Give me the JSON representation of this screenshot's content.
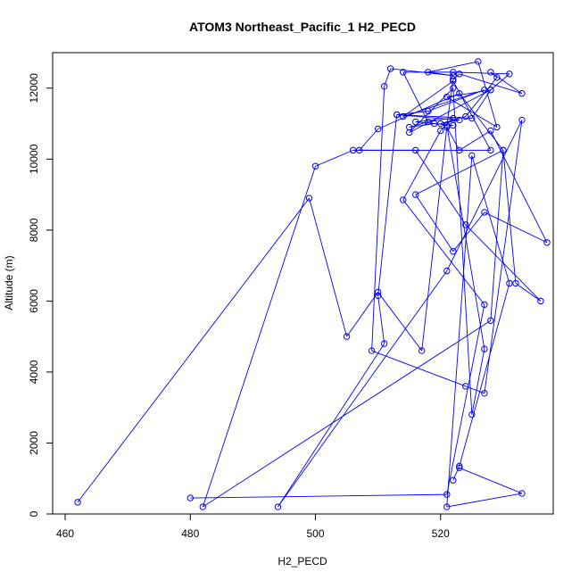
{
  "chart_data": {
    "type": "line",
    "title": "ATOM3 Northeast_Pacific_1 H2_PECD",
    "xlabel": "H2_PECD",
    "ylabel": "Altitude (m)",
    "xlim": [
      458,
      538
    ],
    "ylim": [
      0,
      13000
    ],
    "xticks": [
      460,
      480,
      500,
      520
    ],
    "yticks": [
      0,
      2000,
      4000,
      6000,
      8000,
      10000,
      12000
    ],
    "grid": false,
    "legend": "none",
    "colors": {
      "series": "#0000ff",
      "axis": "#000000"
    },
    "marker": "open-circle",
    "series": [
      {
        "x": [
          462,
          499,
          505,
          510,
          517,
          521,
          523,
          528,
          537,
          527,
          522,
          516,
          530,
          532,
          536,
          524,
          516,
          506,
          500,
          482,
          528,
          530,
          523,
          510,
          507,
          528,
          522,
          514,
          527,
          518,
          513,
          523,
          520,
          524,
          529,
          528,
          533,
          523,
          522,
          521,
          527,
          525,
          522,
          515,
          528,
          521,
          529,
          526,
          518,
          522,
          512,
          511,
          509,
          524,
          527,
          533,
          521,
          494,
          511,
          510,
          513,
          525,
          528,
          531,
          522,
          514,
          518,
          515,
          519,
          522,
          516,
          522,
          520,
          514,
          527,
          521,
          480
        ],
        "y": [
          330,
          8900,
          5000,
          6250,
          4600,
          10900,
          10250,
          10800,
          7650,
          8500,
          7400,
          9000,
          10250,
          6500,
          6000,
          8150,
          10250,
          10250,
          9800,
          200,
          5450,
          10250,
          11850,
          10850,
          10250,
          10250,
          12200,
          11200,
          11950,
          11350,
          11250,
          11100,
          11000,
          11200,
          12300,
          12450,
          11850,
          12400,
          12250,
          10950,
          4650,
          2800,
          12000,
          10750,
          11950,
          11750,
          10900,
          12750,
          12450,
          12350,
          12550,
          12050,
          4600,
          3600,
          3400,
          11100,
          6850,
          200,
          4800,
          6150,
          11250,
          11150,
          11950,
          12400,
          12450,
          12450,
          11050,
          10900,
          11000,
          10950,
          11050,
          11150,
          10800,
          8850,
          5900,
          550,
          450
        ]
      },
      {
        "x": [
          522,
          523,
          531,
          525,
          521,
          533,
          523
        ],
        "y": [
          950,
          1350,
          6500,
          10100,
          200,
          580,
          1300
        ]
      }
    ]
  }
}
